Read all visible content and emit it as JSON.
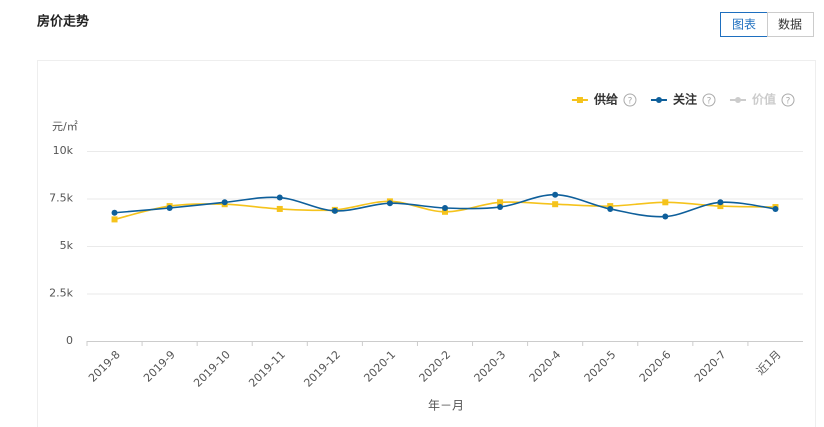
{
  "controls": {
    "buttons": [
      {
        "label": "图表",
        "selected": true
      },
      {
        "label": "数据",
        "selected": false
      }
    ]
  },
  "chart_data": {
    "type": "line",
    "title": "房价走势",
    "ylabel": "元/㎡",
    "xlabel": "年－月",
    "categories": [
      "2019-8",
      "2019-9",
      "2019-10",
      "2019-11",
      "2019-12",
      "2020-1",
      "2020-2",
      "2020-3",
      "2020-4",
      "2020-5",
      "2020-6",
      "2020-7",
      "近1月"
    ],
    "series": [
      {
        "name": "供给",
        "color": "#f5c31c",
        "marker": "square",
        "values": [
          6400,
          7100,
          7200,
          6950,
          6900,
          7350,
          6800,
          7300,
          7200,
          7100,
          7300,
          7100,
          7050
        ]
      },
      {
        "name": "关注",
        "color": "#0e5f9b",
        "marker": "circle",
        "values": [
          6750,
          7000,
          7300,
          7550,
          6850,
          7250,
          7000,
          7050,
          7700,
          6950,
          6550,
          7300,
          6950
        ]
      },
      {
        "name": "价值",
        "color": "#cccccc",
        "marker": "circle",
        "hidden": true,
        "values": [
          null,
          null,
          null,
          null,
          null,
          null,
          null,
          null,
          null,
          null,
          null,
          null,
          null
        ]
      }
    ],
    "ylim": [
      0,
      10000
    ],
    "yticks": [
      0,
      {
        "value": 2500,
        "label": "2.5k"
      },
      {
        "value": 5000,
        "label": "5k"
      },
      {
        "value": 7500,
        "label": "7.5k"
      },
      {
        "value": 10000,
        "label": "10k"
      }
    ],
    "grid": true,
    "smooth": true,
    "legend": "top-right"
  }
}
